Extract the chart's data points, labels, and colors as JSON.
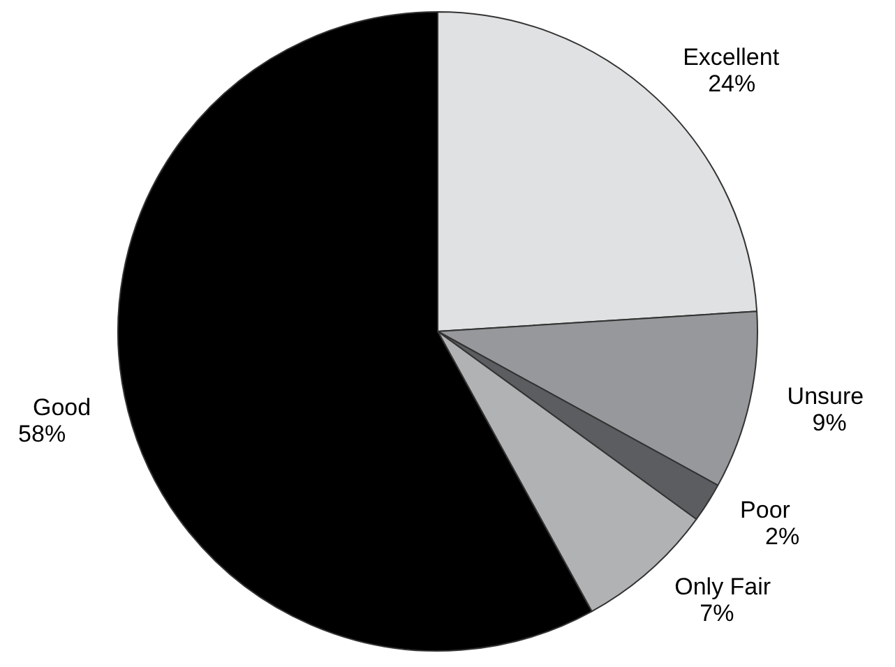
{
  "chart_data": {
    "type": "pie",
    "categories": [
      "Excellent",
      "Unsure",
      "Poor",
      "Only Fair",
      "Good"
    ],
    "values": [
      24,
      9,
      2,
      7,
      58
    ],
    "value_labels": [
      "24%",
      "9%",
      "2%",
      "7%",
      "58%"
    ],
    "colors": [
      "#e0e1e2",
      "#97989b",
      "#5c5d60",
      "#b1b2b4",
      "#000000"
    ],
    "legend": false
  }
}
